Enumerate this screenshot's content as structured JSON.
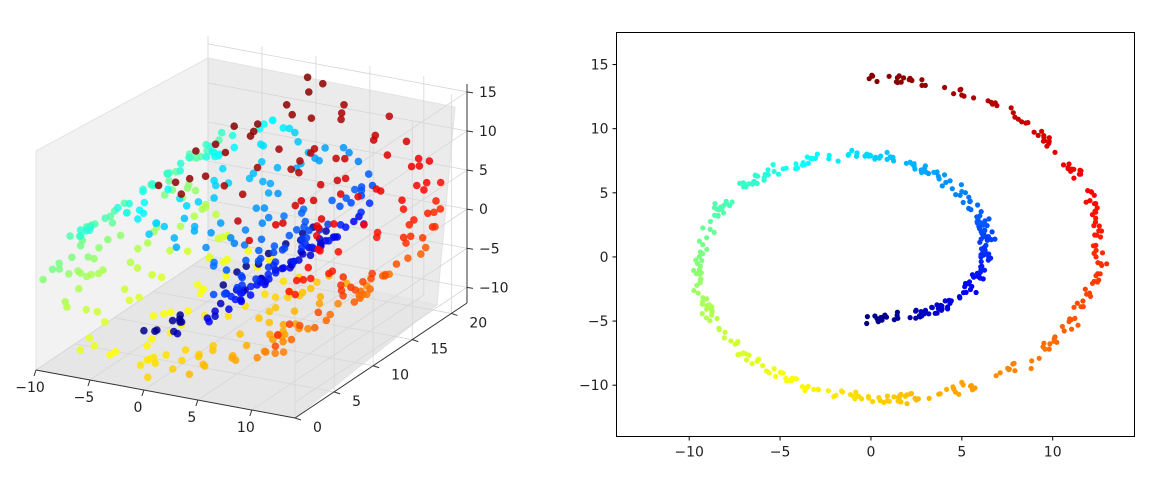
{
  "chart_data": [
    {
      "type": "scatter",
      "subtype": "3d",
      "title": "",
      "xlabel": "",
      "ylabel": "",
      "zlabel": "",
      "xlim": [
        -10,
        14
      ],
      "ylim": [
        0,
        22
      ],
      "zlim": [
        -12,
        16
      ],
      "x_ticks": [
        "−10",
        "−5",
        "0",
        "5",
        "10"
      ],
      "y_ticks": [
        "0",
        "5",
        "10",
        "15",
        "20"
      ],
      "z_ticks": [
        "−10",
        "−5",
        "0",
        "5",
        "10",
        "15"
      ],
      "grid": true,
      "colormap": "jet",
      "color_variable": "position along the swiss-roll spiral (t)",
      "t_range": [
        4.71,
        14.14
      ],
      "points_description": "~500 points on a swiss roll: x = t·cos(t), y = uniform 0–21, z = t·sin(t)"
    },
    {
      "type": "scatter",
      "title": "",
      "xlabel": "",
      "ylabel": "",
      "xlim": [
        -14,
        14.5
      ],
      "ylim": [
        -14,
        17.5
      ],
      "x_ticks": [
        -10,
        -5,
        0,
        5,
        10
      ],
      "y_ticks": [
        -10,
        -5,
        0,
        5,
        10,
        15
      ],
      "grid": false,
      "colormap": "jet",
      "color_variable": "position along the spiral (t)",
      "t_range": [
        4.71,
        14.14
      ],
      "points_description": "~500 points, projection of the swiss roll: x = t·cos(t), y = t·sin(t)"
    }
  ]
}
